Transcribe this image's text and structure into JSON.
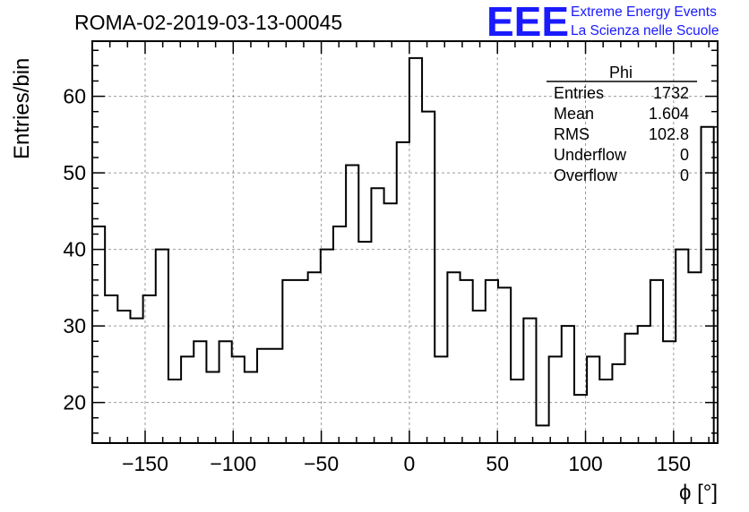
{
  "header": {
    "run_title": "ROMA-02-2019-03-13-00045",
    "logo_text": "EEE",
    "logo_line1": "Extreme Energy Events",
    "logo_line2": "La Scienza nelle Scuole",
    "logo_color": "#1a1aff"
  },
  "stats_box": {
    "title": "Phi",
    "rows": [
      {
        "label": "Entries",
        "value": "1732"
      },
      {
        "label": "Mean",
        "value": "1.604"
      },
      {
        "label": "RMS",
        "value": "102.8"
      },
      {
        "label": "Underflow",
        "value": "0"
      },
      {
        "label": "Overflow",
        "value": "0"
      }
    ]
  },
  "chart_data": {
    "type": "bar",
    "style": "step-histogram",
    "title": "ROMA-02-2019-03-13-00045",
    "xlabel": "ϕ [°]",
    "ylabel": "Entries/bin",
    "xlim": [
      -180,
      175
    ],
    "ylim": [
      14.7,
      67.2
    ],
    "bin_width": 7.2,
    "bin_start": -180,
    "xticks": [
      -150,
      -100,
      -50,
      0,
      50,
      100,
      150
    ],
    "xtick_labels": [
      "−150",
      "−100",
      "−50",
      "0",
      "50",
      "100",
      "150"
    ],
    "yticks": [
      20,
      30,
      40,
      50,
      60
    ],
    "ytick_labels": [
      "20",
      "30",
      "40",
      "50",
      "60"
    ],
    "grid": true,
    "legend": "top-right stats box",
    "values": [
      43,
      34,
      32,
      31,
      34,
      40,
      23,
      26,
      28,
      24,
      28,
      26,
      24,
      27,
      27,
      36,
      36,
      37,
      40,
      43,
      51,
      41,
      48,
      46,
      54,
      65,
      58,
      26,
      37,
      36,
      32,
      36,
      35,
      23,
      31,
      17,
      26,
      30,
      21,
      26,
      23,
      25,
      29,
      30,
      36,
      28,
      40,
      37,
      56
    ],
    "line_color": "#000000"
  }
}
